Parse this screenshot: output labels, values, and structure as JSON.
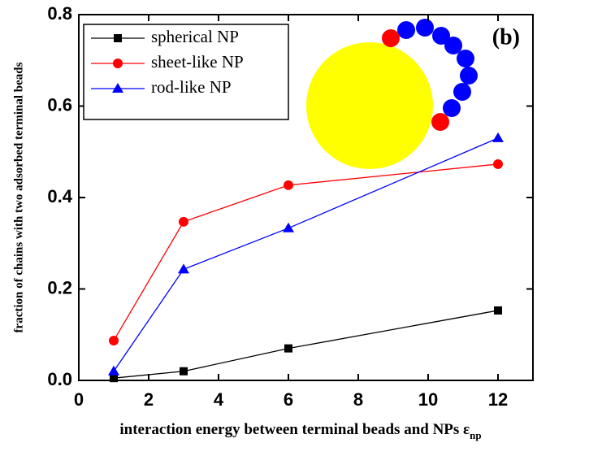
{
  "chart_data": {
    "type": "line",
    "annotation": "(b)",
    "xlabel": "interaction energy between terminal beads and NPs ε",
    "xlabel_subscript": "np",
    "ylabel": "fraction of chains with two adsorbed terminal beads",
    "x": [
      1,
      3,
      6,
      12
    ],
    "series": [
      {
        "name": "spherical NP",
        "color": "#000000",
        "marker": "square",
        "values": [
          0.005,
          0.02,
          0.07,
          0.153
        ]
      },
      {
        "name": "sheet-like NP",
        "color": "#ff0000",
        "marker": "circle",
        "values": [
          0.087,
          0.347,
          0.427,
          0.473
        ]
      },
      {
        "name": "rod-like NP",
        "color": "#0000ff",
        "marker": "triangle",
        "values": [
          0.02,
          0.243,
          0.333,
          0.53
        ]
      }
    ],
    "xlim": [
      0,
      13
    ],
    "xticks": [
      0,
      2,
      4,
      6,
      8,
      10,
      12
    ],
    "ylim": [
      0,
      0.8
    ],
    "yticks": [
      {
        "value": 0,
        "label": "0.0"
      },
      0.2,
      0.4,
      0.6,
      0.8
    ],
    "legend": "upper-left"
  }
}
